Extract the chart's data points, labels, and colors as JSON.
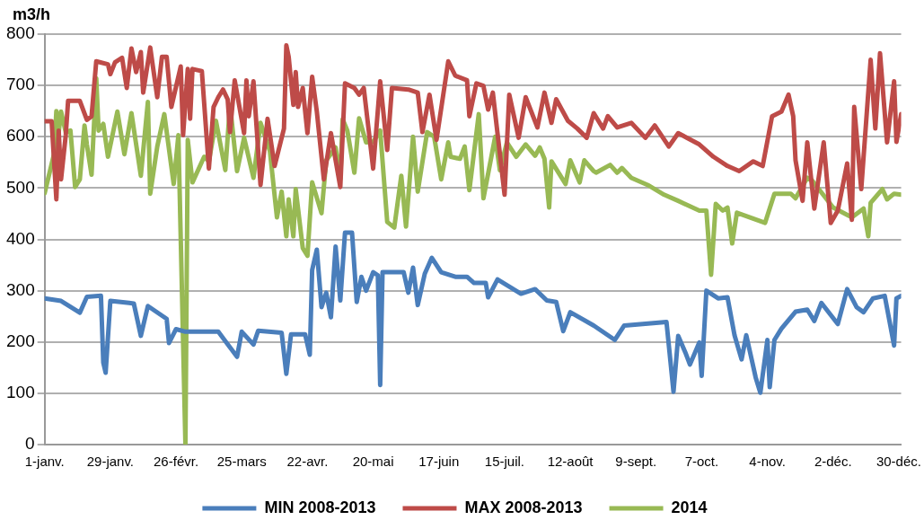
{
  "chart_data": {
    "type": "line",
    "ylabel": "m3/h",
    "xlim": [
      "--01-01",
      "--12-31"
    ],
    "ylim": [
      0,
      800
    ],
    "yticks": [
      0,
      100,
      200,
      300,
      400,
      500,
      600,
      700,
      800
    ],
    "xticks": [
      {
        "value": "--01-01",
        "label": "1-janv."
      },
      {
        "value": "--01-29",
        "label": "29-janv."
      },
      {
        "value": "--02-26",
        "label": "26-févr."
      },
      {
        "value": "--03-25",
        "label": "25-mars"
      },
      {
        "value": "--04-22",
        "label": "22-avr."
      },
      {
        "value": "--05-20",
        "label": "20-mai"
      },
      {
        "value": "--06-17",
        "label": "17-juin"
      },
      {
        "value": "--07-15",
        "label": "15-juil."
      },
      {
        "value": "--08-12",
        "label": "12-août"
      },
      {
        "value": "--09-09",
        "label": "9-sept."
      },
      {
        "value": "--10-07",
        "label": "7-oct."
      },
      {
        "value": "--11-04",
        "label": "4-nov."
      },
      {
        "value": "--12-02",
        "label": "2-déc."
      },
      {
        "value": "--12-30",
        "label": "30-déc."
      }
    ],
    "grid": "y",
    "legend": "bottom",
    "marker": "none",
    "line_style": "solid",
    "series": [
      {
        "name": "MIN 2008-2013",
        "color": "#4a7ebb",
        "x": [
          "--01-01",
          "--01-08",
          "--01-16",
          "--01-19",
          "--01-25",
          "--01-26",
          "--01-27",
          "--01-29",
          "--02-06",
          "--02-08",
          "--02-11",
          "--02-14",
          "--02-22",
          "--02-23",
          "--02-26",
          "--03-01",
          "--03-15",
          "--03-23",
          "--03-25",
          "--03-30",
          "--04-01",
          "--04-11",
          "--04-13",
          "--04-15",
          "--04-21",
          "--04-23",
          "--04-24",
          "--04-26",
          "--04-28",
          "--04-30",
          "--05-02",
          "--05-04",
          "--05-06",
          "--05-08",
          "--05-11",
          "--05-13",
          "--05-15",
          "--05-17",
          "--05-20",
          "--05-22",
          "--05-23",
          "--05-24",
          "--06-02",
          "--06-04",
          "--06-06",
          "--06-08",
          "--06-11",
          "--06-14",
          "--06-18",
          "--06-24",
          "--06-29",
          "--07-02",
          "--07-07",
          "--07-08",
          "--07-12",
          "--07-22",
          "--07-28",
          "--08-02",
          "--08-06",
          "--08-09",
          "--08-12",
          "--08-22",
          "--08-31",
          "--09-04",
          "--09-22",
          "--09-25",
          "--09-27",
          "--09-30",
          "--10-02",
          "--10-06",
          "--10-07",
          "--10-09",
          "--10-14",
          "--10-18",
          "--10-21",
          "--10-24",
          "--10-26",
          "--10-30",
          "--11-01",
          "--11-04",
          "--11-05",
          "--11-07",
          "--11-10",
          "--11-14",
          "--11-16",
          "--11-21",
          "--11-24",
          "--11-27",
          "--12-04",
          "--12-08",
          "--12-12",
          "--12-15",
          "--12-19",
          "--12-24",
          "--12-28",
          "--12-29",
          "--12-31"
        ],
        "values": [
          285,
          280,
          257,
          288,
          290,
          160,
          140,
          280,
          276,
          275,
          212,
          270,
          245,
          198,
          225,
          220,
          220,
          171,
          220,
          195,
          222,
          218,
          138,
          215,
          215,
          175,
          340,
          380,
          268,
          296,
          248,
          386,
          281,
          413,
          413,
          278,
          327,
          300,
          336,
          330,
          116,
          336,
          336,
          296,
          345,
          272,
          333,
          364,
          336,
          327,
          327,
          315,
          315,
          287,
          322,
          294,
          303,
          281,
          278,
          221,
          258,
          232,
          204,
          232,
          239,
          103,
          212,
          180,
          156,
          199,
          134,
          300,
          285,
          287,
          213,
          166,
          213,
          131,
          101,
          204,
          112,
          204,
          226,
          248,
          259,
          263,
          241,
          276,
          235,
          303,
          268,
          258,
          285,
          290,
          193,
          285,
          290
        ]
      },
      {
        "name": "MAX 2008-2013",
        "color": "#be4b48",
        "x": [
          "--01-01",
          "--01-04",
          "--01-06",
          "--01-07",
          "--01-08",
          "--01-10",
          "--01-11",
          "--01-16",
          "--01-19",
          "--01-21",
          "--01-23",
          "--01-28",
          "--01-29",
          "--01-31",
          "--02-03",
          "--02-05",
          "--02-07",
          "--02-09",
          "--02-11",
          "--02-12",
          "--02-15",
          "--02-18",
          "--02-20",
          "--02-22",
          "--02-24",
          "--02-28",
          "--02-29",
          "--03-02",
          "--03-03",
          "--03-04",
          "--03-08",
          "--03-11",
          "--03-13",
          "--03-15",
          "--03-17",
          "--03-19",
          "--03-20",
          "--03-22",
          "--03-26",
          "--03-27",
          "--03-28",
          "--03-30",
          "--04-02",
          "--04-05",
          "--04-08",
          "--04-12",
          "--04-13",
          "--04-14",
          "--04-16",
          "--04-17",
          "--04-18",
          "--04-20",
          "--04-22",
          "--04-24",
          "--04-26",
          "--04-29",
          "--05-02",
          "--05-06",
          "--05-08",
          "--05-12",
          "--05-14",
          "--05-16",
          "--05-20",
          "--05-23",
          "--05-26",
          "--05-28",
          "--06-04",
          "--06-08",
          "--06-10",
          "--06-13",
          "--06-16",
          "--06-21",
          "--06-24",
          "--06-29",
          "--06-30",
          "--07-03",
          "--07-06",
          "--07-08",
          "--07-10",
          "--07-15",
          "--07-17",
          "--07-21",
          "--07-24",
          "--07-29",
          "--08-01",
          "--08-04",
          "--08-06",
          "--08-11",
          "--08-15",
          "--08-19",
          "--08-22",
          "--08-26",
          "--08-28",
          "--09-01",
          "--09-07",
          "--09-13",
          "--09-17",
          "--09-23",
          "--09-27",
          "--10-06",
          "--10-12",
          "--10-18",
          "--10-23",
          "--10-29",
          "--11-02",
          "--11-06",
          "--11-10",
          "--11-13",
          "--11-15",
          "--11-16",
          "--11-19",
          "--11-21",
          "--11-24",
          "--11-28",
          "--12-01",
          "--12-04",
          "--12-08",
          "--12-10",
          "--12-11",
          "--12-14",
          "--12-18",
          "--12-20",
          "--12-22",
          "--12-25",
          "--12-28",
          "--12-29",
          "--12-31"
        ],
        "values": [
          630,
          630,
          478,
          612,
          517,
          603,
          670,
          670,
          633,
          640,
          747,
          741,
          722,
          745,
          754,
          695,
          772,
          726,
          765,
          686,
          774,
          677,
          756,
          756,
          658,
          737,
          603,
          732,
          635,
          732,
          728,
          538,
          658,
          677,
          692,
          673,
          609,
          710,
          607,
          710,
          640,
          708,
          506,
          635,
          543,
          616,
          778,
          756,
          662,
          726,
          658,
          695,
          607,
          717,
          649,
          517,
          607,
          502,
          704,
          695,
          682,
          695,
          538,
          708,
          574,
          695,
          692,
          686,
          609,
          682,
          594,
          747,
          719,
          710,
          640,
          704,
          699,
          653,
          686,
          487,
          682,
          598,
          677,
          618,
          686,
          627,
          673,
          631,
          616,
          598,
          646,
          616,
          640,
          618,
          627,
          598,
          622,
          581,
          607,
          585,
          561,
          543,
          533,
          552,
          543,
          640,
          649,
          682,
          640,
          554,
          475,
          589,
          460,
          589,
          432,
          456,
          548,
          438,
          658,
          498,
          750,
          616,
          763,
          589,
          708,
          590,
          644
        ]
      },
      {
        "name": "2014",
        "color": "#98b954",
        "x": [
          "--01-01",
          "--01-05",
          "--01-06",
          "--01-07",
          "--01-08",
          "--01-10",
          "--01-12",
          "--01-14",
          "--01-16",
          "--01-18",
          "--01-19",
          "--01-21",
          "--01-23",
          "--01-24",
          "--01-26",
          "--01-28",
          "--02-01",
          "--02-04",
          "--02-07",
          "--02-11",
          "--02-14",
          "--02-15",
          "--02-18",
          "--02-21",
          "--02-25",
          "--02-27",
          "--03-01",
          "--03-02",
          "--03-04",
          "--03-09",
          "--03-11",
          "--03-14",
          "--03-18",
          "--03-20",
          "--03-23",
          "--03-26",
          "--03-30",
          "--04-02",
          "--04-06",
          "--04-09",
          "--04-11",
          "--04-13",
          "--04-14",
          "--04-16",
          "--04-17",
          "--04-20",
          "--04-22",
          "--04-24",
          "--04-28",
          "--04-30",
          "--05-04",
          "--05-06",
          "--05-07",
          "--05-09",
          "--05-12",
          "--05-14",
          "--05-17",
          "--05-20",
          "--05-23",
          "--05-26",
          "--05-29",
          "--06-01",
          "--06-03",
          "--06-06",
          "--06-08",
          "--06-12",
          "--06-15",
          "--06-18",
          "--06-21",
          "--06-22",
          "--06-26",
          "--06-28",
          "--06-30",
          "--07-04",
          "--07-06",
          "--07-11",
          "--07-13",
          "--07-16",
          "--07-20",
          "--07-24",
          "--07-28",
          "--07-30",
          "--08-01",
          "--08-03",
          "--08-04",
          "--08-10",
          "--08-12",
          "--08-16",
          "--08-18",
          "--08-22",
          "--08-23",
          "--08-29",
          "--09-01",
          "--09-03",
          "--09-07",
          "--09-14",
          "--09-21",
          "--09-27",
          "--10-06",
          "--10-09",
          "--10-11",
          "--10-13",
          "--10-16",
          "--10-18",
          "--10-20",
          "--10-22",
          "--11-03",
          "--11-07",
          "--11-14",
          "--11-16",
          "--11-21",
          "--11-23",
          "--12-02",
          "--12-10",
          "--12-15",
          "--12-17",
          "--12-18",
          "--12-23",
          "--12-25",
          "--12-28",
          "--12-31"
        ],
        "values": [
          490,
          566,
          650,
          609,
          649,
          609,
          612,
          502,
          517,
          622,
          585,
          526,
          714,
          612,
          625,
          561,
          649,
          566,
          646,
          524,
          668,
          489,
          581,
          644,
          508,
          603,
          0,
          594,
          511,
          561,
          552,
          631,
          535,
          662,
          533,
          598,
          520,
          627,
          572,
          443,
          493,
          406,
          478,
          406,
          498,
          383,
          368,
          511,
          451,
          554,
          579,
          517,
          634,
          612,
          530,
          636,
          589,
          590,
          612,
          434,
          423,
          524,
          425,
          600,
          493,
          609,
          600,
          517,
          589,
          561,
          557,
          581,
          496,
          644,
          480,
          600,
          535,
          589,
          561,
          585,
          563,
          579,
          557,
          462,
          552,
          508,
          554,
          511,
          554,
          533,
          530,
          545,
          530,
          539,
          520,
          506,
          487,
          475,
          456,
          456,
          331,
          469,
          456,
          462,
          392,
          452,
          432,
          489,
          489,
          480,
          520,
          515,
          462,
          443,
          460,
          406,
          471,
          498,
          478,
          489,
          487
        ]
      }
    ]
  }
}
